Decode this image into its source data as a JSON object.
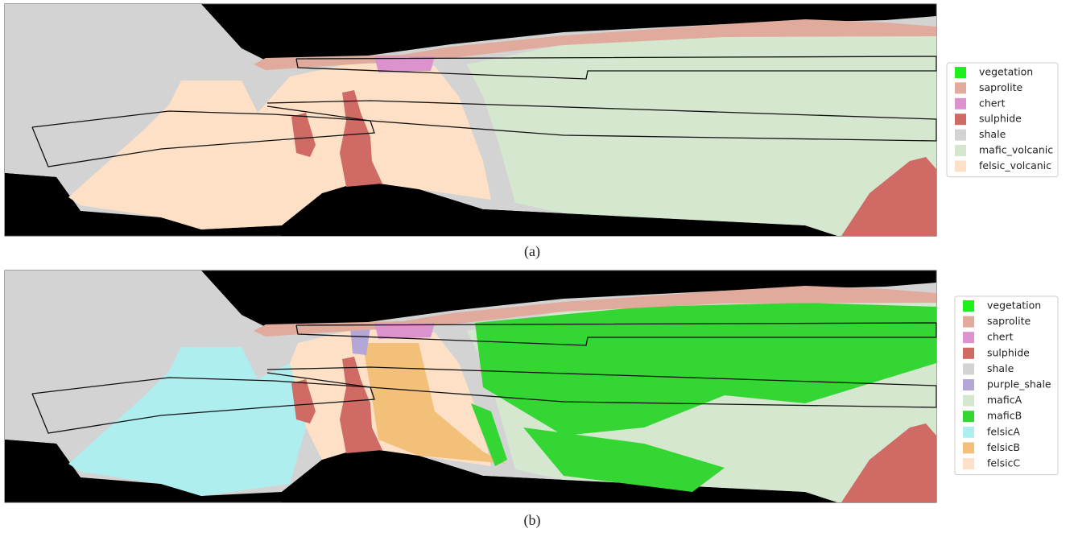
{
  "panels": [
    {
      "caption": "(a)",
      "legend": [
        {
          "label": "vegetation",
          "color": "#1ef01e"
        },
        {
          "label": "saprolite",
          "color": "#e0aa9c"
        },
        {
          "label": "chert",
          "color": "#dc92cc"
        },
        {
          "label": "sulphide",
          "color": "#d06a64"
        },
        {
          "label": "shale",
          "color": "#d3d3d3"
        },
        {
          "label": "mafic_volcanic",
          "color": "#d5e7cf"
        },
        {
          "label": "felsic_volcanic",
          "color": "#fde0c5"
        }
      ]
    },
    {
      "caption": "(b)",
      "legend": [
        {
          "label": "vegetation",
          "color": "#1ef01e"
        },
        {
          "label": "saprolite",
          "color": "#e0aa9c"
        },
        {
          "label": "chert",
          "color": "#dc92cc"
        },
        {
          "label": "sulphide",
          "color": "#d06a64"
        },
        {
          "label": "shale",
          "color": "#d3d3d3"
        },
        {
          "label": "purple_shale",
          "color": "#b4a6d7"
        },
        {
          "label": "maficA",
          "color": "#d5e7cf"
        },
        {
          "label": "maficB",
          "color": "#33d633"
        },
        {
          "label": "felsicA",
          "color": "#aeeeee"
        },
        {
          "label": "felsicB",
          "color": "#f3c07a"
        },
        {
          "label": "felsicC",
          "color": "#fde0c5"
        }
      ]
    }
  ]
}
